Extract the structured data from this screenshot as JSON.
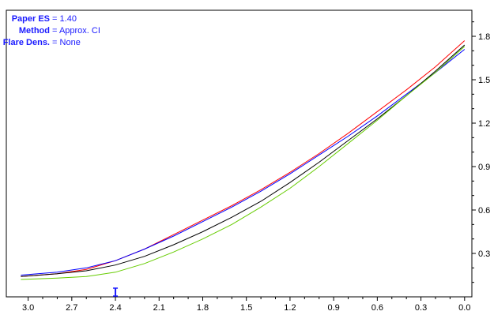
{
  "info": {
    "rows": [
      {
        "key": "Paper ES",
        "sep": " = ",
        "value": "1.40"
      },
      {
        "key": "Method",
        "sep": " = ",
        "value": "Approx. CI"
      },
      {
        "key": "Flare Dens.",
        "sep": " = ",
        "value": "None"
      }
    ],
    "color": "#1a1aff"
  },
  "chart_data": {
    "type": "line",
    "title": "",
    "xlabel": "",
    "ylabel": "",
    "xlim": [
      3.15,
      -0.05
    ],
    "ylim": [
      0.0,
      1.98
    ],
    "x_reversed": true,
    "y_axis_side": "right",
    "grid": false,
    "x_ticks": [
      "3.0",
      "2.7",
      "2.4",
      "2.1",
      "1.8",
      "1.5",
      "1.2",
      "0.9",
      "0.6",
      "0.3",
      "0.0"
    ],
    "x_tick_values": [
      3.0,
      2.7,
      2.4,
      2.1,
      1.8,
      1.5,
      1.2,
      0.9,
      0.6,
      0.3,
      0.0
    ],
    "y_ticks": [
      "0.3",
      "0.6",
      "0.9",
      "1.2",
      "1.5",
      "1.8"
    ],
    "y_tick_values": [
      0.3,
      0.6,
      0.9,
      1.2,
      1.5,
      1.8
    ],
    "marker": {
      "x": 2.4,
      "color": "#1a1aff"
    },
    "series": [
      {
        "color": "#ff0000",
        "x": [
          3.05,
          2.8,
          2.6,
          2.4,
          2.2,
          2.0,
          1.8,
          1.6,
          1.4,
          1.2,
          1.0,
          0.8,
          0.6,
          0.4,
          0.2,
          0.0
        ],
        "y": [
          0.14,
          0.16,
          0.19,
          0.25,
          0.33,
          0.43,
          0.53,
          0.63,
          0.74,
          0.86,
          0.99,
          1.13,
          1.28,
          1.43,
          1.59,
          1.77
        ]
      },
      {
        "color": "#0000ff",
        "x": [
          3.05,
          2.8,
          2.6,
          2.4,
          2.2,
          2.0,
          1.8,
          1.6,
          1.4,
          1.2,
          1.0,
          0.8,
          0.6,
          0.4,
          0.2,
          0.0
        ],
        "y": [
          0.15,
          0.17,
          0.2,
          0.25,
          0.33,
          0.42,
          0.52,
          0.62,
          0.73,
          0.85,
          0.98,
          1.11,
          1.25,
          1.4,
          1.55,
          1.71
        ]
      },
      {
        "color": "#000000",
        "x": [
          3.05,
          2.8,
          2.6,
          2.4,
          2.2,
          2.0,
          1.8,
          1.6,
          1.4,
          1.2,
          1.0,
          0.8,
          0.6,
          0.4,
          0.2,
          0.0
        ],
        "y": [
          0.14,
          0.16,
          0.18,
          0.22,
          0.28,
          0.36,
          0.45,
          0.55,
          0.66,
          0.79,
          0.93,
          1.08,
          1.23,
          1.39,
          1.56,
          1.74
        ]
      },
      {
        "color": "#66cc00",
        "x": [
          3.05,
          2.8,
          2.6,
          2.4,
          2.2,
          2.0,
          1.8,
          1.6,
          1.4,
          1.2,
          1.0,
          0.8,
          0.6,
          0.4,
          0.2,
          0.0
        ],
        "y": [
          0.12,
          0.13,
          0.14,
          0.17,
          0.23,
          0.31,
          0.4,
          0.5,
          0.62,
          0.75,
          0.9,
          1.06,
          1.22,
          1.39,
          1.55,
          1.73
        ]
      }
    ]
  }
}
